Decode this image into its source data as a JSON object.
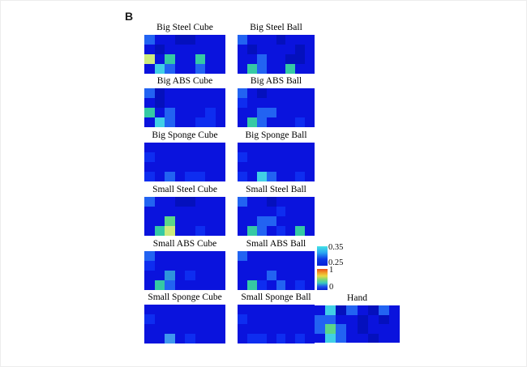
{
  "figure": {
    "panel_label": "B"
  },
  "colorbar": {
    "upper": {
      "top_label": "0.35",
      "bottom_label": "0.25",
      "stops": [
        "#44e2e4",
        "#2aa6f2",
        "#0b36e6",
        "#0820d8"
      ]
    },
    "lower": {
      "top_label": "1",
      "bottom_label": "0",
      "stops": [
        "#e8491e",
        "#f29a28",
        "#ead944",
        "#7cd878",
        "#3ac8c0",
        "#1f52ee",
        "#0a1fd0"
      ]
    }
  },
  "chart_data": {
    "type": "heatmap",
    "grid_rows": 4,
    "grid_cols": 8,
    "colorbar_scales": [
      {
        "min": 0.25,
        "max": 0.35
      },
      {
        "min": 0,
        "max": 1
      }
    ],
    "palette": {
      "b": "#0a13dd",
      "d": "#0410bd",
      "s": "#0e2df0",
      "L": "#2263f2",
      "M": "#3f97ee",
      "bt": "#2e93dc",
      "c": "#40cfe6",
      "t": "#35c9a4",
      "g": "#5cd688",
      "Y": "#cdeb7d"
    },
    "palette_legend": {
      "b": "base blue (low)",
      "d": "darker blue (lowest)",
      "s": "slightly lighter blue",
      "L": "light blue",
      "M": "sky blue",
      "bt": "blue-teal",
      "c": "cyan",
      "t": "teal-green",
      "g": "green",
      "Y": "yellow-green (highest)"
    },
    "heatmaps": [
      {
        "title": "Big Steel Cube",
        "cells": [
          [
            "L",
            "b",
            "b",
            "d",
            "d",
            "b",
            "b",
            "b"
          ],
          [
            "b",
            "d",
            "b",
            "b",
            "b",
            "b",
            "b",
            "b"
          ],
          [
            "Y",
            "b",
            "t",
            "b",
            "b",
            "t",
            "b",
            "b"
          ],
          [
            "b",
            "c",
            "L",
            "b",
            "b",
            "L",
            "b",
            "b"
          ]
        ]
      },
      {
        "title": "Big Steel Ball",
        "cells": [
          [
            "L",
            "b",
            "b",
            "b",
            "d",
            "b",
            "b",
            "b"
          ],
          [
            "b",
            "d",
            "b",
            "b",
            "b",
            "b",
            "d",
            "b"
          ],
          [
            "b",
            "b",
            "L",
            "b",
            "b",
            "d",
            "d",
            "b"
          ],
          [
            "b",
            "t",
            "L",
            "b",
            "b",
            "t",
            "b",
            "b"
          ]
        ]
      },
      {
        "title": "Big ABS Cube",
        "cells": [
          [
            "L",
            "d",
            "b",
            "b",
            "b",
            "b",
            "b",
            "b"
          ],
          [
            "b",
            "d",
            "b",
            "b",
            "b",
            "b",
            "b",
            "b"
          ],
          [
            "t",
            "b",
            "L",
            "b",
            "b",
            "b",
            "s",
            "b"
          ],
          [
            "b",
            "c",
            "L",
            "b",
            "b",
            "s",
            "s",
            "b"
          ]
        ]
      },
      {
        "title": "Big ABS Ball",
        "cells": [
          [
            "L",
            "b",
            "d",
            "b",
            "b",
            "b",
            "b",
            "b"
          ],
          [
            "s",
            "b",
            "b",
            "b",
            "b",
            "b",
            "b",
            "b"
          ],
          [
            "b",
            "b",
            "L",
            "L",
            "b",
            "b",
            "b",
            "b"
          ],
          [
            "b",
            "t",
            "L",
            "b",
            "b",
            "b",
            "s",
            "b"
          ]
        ]
      },
      {
        "title": "Big Sponge Cube",
        "cells": [
          [
            "b",
            "b",
            "b",
            "b",
            "b",
            "b",
            "b",
            "b"
          ],
          [
            "s",
            "b",
            "b",
            "b",
            "b",
            "b",
            "b",
            "b"
          ],
          [
            "b",
            "b",
            "b",
            "b",
            "b",
            "b",
            "b",
            "b"
          ],
          [
            "s",
            "b",
            "L",
            "b",
            "s",
            "s",
            "b",
            "b"
          ]
        ]
      },
      {
        "title": "Big Sponge Ball",
        "cells": [
          [
            "b",
            "b",
            "b",
            "b",
            "b",
            "b",
            "b",
            "b"
          ],
          [
            "s",
            "b",
            "b",
            "b",
            "b",
            "b",
            "b",
            "b"
          ],
          [
            "b",
            "b",
            "b",
            "b",
            "b",
            "b",
            "b",
            "b"
          ],
          [
            "s",
            "b",
            "c",
            "L",
            "b",
            "b",
            "s",
            "b"
          ]
        ]
      },
      {
        "title": "Small Steel Cube",
        "cells": [
          [
            "L",
            "b",
            "b",
            "d",
            "d",
            "b",
            "b",
            "b"
          ],
          [
            "b",
            "b",
            "b",
            "b",
            "b",
            "b",
            "b",
            "b"
          ],
          [
            "b",
            "b",
            "g",
            "b",
            "b",
            "b",
            "b",
            "b"
          ],
          [
            "b",
            "t",
            "Y",
            "b",
            "b",
            "s",
            "b",
            "b"
          ]
        ]
      },
      {
        "title": "Small Steel Ball",
        "cells": [
          [
            "L",
            "b",
            "b",
            "d",
            "b",
            "b",
            "b",
            "b"
          ],
          [
            "b",
            "b",
            "b",
            "b",
            "s",
            "b",
            "b",
            "b"
          ],
          [
            "b",
            "b",
            "L",
            "L",
            "b",
            "b",
            "b",
            "b"
          ],
          [
            "b",
            "t",
            "L",
            "b",
            "s",
            "b",
            "t",
            "b"
          ]
        ]
      },
      {
        "title": "Small ABS Cube",
        "cells": [
          [
            "L",
            "b",
            "b",
            "b",
            "b",
            "b",
            "b",
            "b"
          ],
          [
            "s",
            "b",
            "b",
            "b",
            "b",
            "b",
            "b",
            "b"
          ],
          [
            "b",
            "b",
            "bt",
            "b",
            "s",
            "b",
            "b",
            "b"
          ],
          [
            "b",
            "t",
            "L",
            "b",
            "b",
            "b",
            "b",
            "b"
          ]
        ]
      },
      {
        "title": "Small ABS Ball",
        "cells": [
          [
            "L",
            "b",
            "b",
            "b",
            "b",
            "b",
            "b",
            "b"
          ],
          [
            "b",
            "b",
            "b",
            "b",
            "b",
            "b",
            "b",
            "b"
          ],
          [
            "b",
            "b",
            "b",
            "L",
            "b",
            "b",
            "b",
            "b"
          ],
          [
            "b",
            "t",
            "s",
            "b",
            "L",
            "b",
            "s",
            "b"
          ]
        ]
      },
      {
        "title": "Small Sponge Cube",
        "cells": [
          [
            "b",
            "b",
            "b",
            "b",
            "b",
            "b",
            "b",
            "b"
          ],
          [
            "s",
            "b",
            "b",
            "b",
            "b",
            "b",
            "b",
            "b"
          ],
          [
            "b",
            "b",
            "b",
            "b",
            "b",
            "b",
            "b",
            "b"
          ],
          [
            "b",
            "b",
            "M",
            "b",
            "s",
            "b",
            "b",
            "b"
          ]
        ]
      },
      {
        "title": "Small Sponge Ball",
        "cells": [
          [
            "b",
            "b",
            "b",
            "b",
            "b",
            "b",
            "b",
            "b"
          ],
          [
            "s",
            "b",
            "b",
            "b",
            "b",
            "b",
            "b",
            "b"
          ],
          [
            "b",
            "b",
            "b",
            "b",
            "b",
            "b",
            "b",
            "b"
          ],
          [
            "b",
            "s",
            "s",
            "b",
            "s",
            "b",
            "s",
            "b"
          ]
        ]
      },
      {
        "title": "Hand",
        "cells": [
          [
            "b",
            "c",
            "d",
            "L",
            "b",
            "d",
            "L",
            "b"
          ],
          [
            "L",
            "L",
            "b",
            "b",
            "d",
            "b",
            "d",
            "b"
          ],
          [
            "L",
            "g",
            "L",
            "b",
            "d",
            "b",
            "b",
            "b"
          ],
          [
            "b",
            "c",
            "L",
            "b",
            "b",
            "d",
            "b",
            "b"
          ]
        ]
      }
    ]
  }
}
